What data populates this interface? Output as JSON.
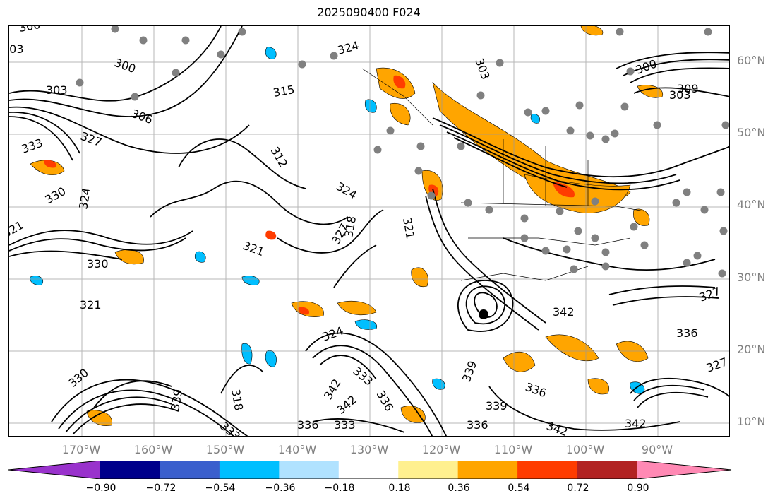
{
  "figure": {
    "title": "2025090400 F024"
  },
  "map": {
    "lat_labels": [
      "60°N",
      "50°N",
      "40°N",
      "30°N",
      "20°N",
      "10°N"
    ],
    "lon_labels": [
      "170°W",
      "160°W",
      "150°W",
      "140°W",
      "130°W",
      "120°W",
      "110°W",
      "100°W",
      "90°W"
    ],
    "contour_labels": [
      "300",
      "303",
      "306",
      "309",
      "312",
      "315",
      "318",
      "321",
      "324",
      "327",
      "330",
      "333",
      "336",
      "339",
      "342"
    ],
    "grid": true,
    "features": [
      "coastlines",
      "country borders",
      "state borders",
      "station dots",
      "tropical cyclone center"
    ]
  },
  "colorbar": {
    "ticks": [
      "−0.90",
      "−0.72",
      "−0.54",
      "−0.36",
      "−0.18",
      "0.18",
      "0.36",
      "0.54",
      "0.72",
      "0.90"
    ],
    "colors": [
      "#9932cc",
      "#00008b",
      "#3a5fcd",
      "#00bfff",
      "#b0e2ff",
      "#ffffff",
      "#fff08f",
      "#ffa500",
      "#ff3c00",
      "#b22222",
      "#ff89b4"
    ],
    "extend": "both"
  }
}
